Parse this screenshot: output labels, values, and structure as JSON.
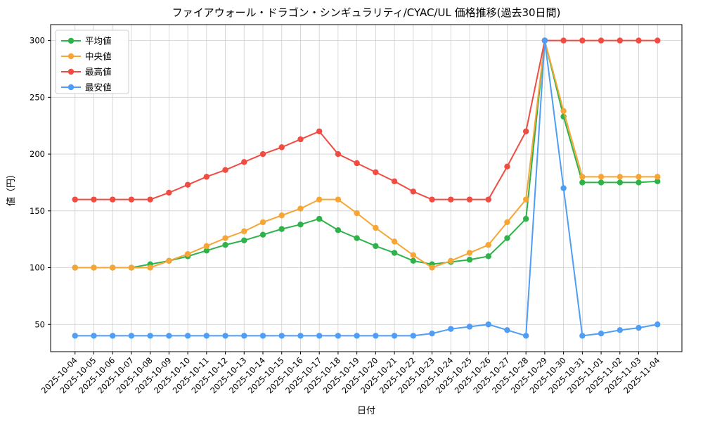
{
  "chart_data": {
    "type": "line",
    "title": "ファイアウォール・ドラゴン・シンギュラリティ/CYAC/UL 価格推移(過去30日間)",
    "xlabel": "日付",
    "ylabel": "値（円）",
    "grid": true,
    "legend_position": "upper left",
    "ylim": [
      26,
      314
    ],
    "yticks": [
      50,
      100,
      150,
      200,
      250,
      300
    ],
    "categories": [
      "2025-10-04",
      "2025-10-05",
      "2025-10-06",
      "2025-10-07",
      "2025-10-08",
      "2025-10-09",
      "2025-10-10",
      "2025-10-11",
      "2025-10-12",
      "2025-10-13",
      "2025-10-14",
      "2025-10-15",
      "2025-10-16",
      "2025-10-17",
      "2025-10-18",
      "2025-10-19",
      "2025-10-20",
      "2025-10-21",
      "2025-10-22",
      "2025-10-23",
      "2025-10-24",
      "2025-10-25",
      "2025-10-26",
      "2025-10-27",
      "2025-10-28",
      "2025-10-29",
      "2025-10-30",
      "2025-10-31",
      "2025-11-01",
      "2025-11-02",
      "2025-11-03",
      "2025-11-04"
    ],
    "series": [
      {
        "key": "average",
        "name": "平均値",
        "color": "#2eb34b",
        "values": [
          100,
          100,
          100,
          100,
          103,
          106,
          110,
          115,
          120,
          124,
          129,
          134,
          138,
          143,
          133,
          126,
          119,
          113,
          106,
          103,
          105,
          107,
          110,
          126,
          143,
          300,
          233,
          175,
          175,
          175,
          175,
          176
        ]
      },
      {
        "key": "median",
        "name": "中央値",
        "color": "#f7a636",
        "values": [
          100,
          100,
          100,
          100,
          100,
          106,
          112,
          119,
          126,
          132,
          140,
          146,
          152,
          160,
          160,
          148,
          135,
          123,
          111,
          100,
          106,
          113,
          120,
          140,
          160,
          300,
          238,
          180,
          180,
          180,
          180,
          180
        ]
      },
      {
        "key": "max",
        "name": "最高値",
        "color": "#f04c42",
        "values": [
          160,
          160,
          160,
          160,
          160,
          166,
          173,
          180,
          186,
          193,
          200,
          206,
          213,
          220,
          200,
          192,
          184,
          176,
          167,
          160,
          160,
          160,
          160,
          189,
          220,
          300,
          300,
          300,
          300,
          300,
          300,
          300
        ]
      },
      {
        "key": "min",
        "name": "最安値",
        "color": "#4f9df5",
        "values": [
          40,
          40,
          40,
          40,
          40,
          40,
          40,
          40,
          40,
          40,
          40,
          40,
          40,
          40,
          40,
          40,
          40,
          40,
          40,
          42,
          46,
          48,
          50,
          45,
          40,
          300,
          170,
          40,
          42,
          45,
          47,
          50
        ]
      }
    ]
  }
}
